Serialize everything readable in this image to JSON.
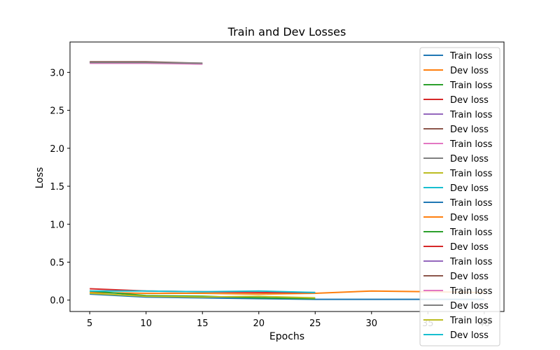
{
  "chart_data": {
    "type": "line",
    "title": "Train and Dev Losses",
    "xlabel": "Epochs",
    "ylabel": "Loss",
    "xlim": [
      3.25,
      41.75
    ],
    "ylim": [
      -0.15,
      3.4
    ],
    "xticks": [
      5,
      10,
      15,
      20,
      25,
      30,
      35,
      40
    ],
    "yticks": [
      0.0,
      0.5,
      1.0,
      1.5,
      2.0,
      2.5,
      3.0
    ],
    "ytick_labels": [
      "0.0",
      "0.5",
      "1.0",
      "1.5",
      "2.0",
      "2.5",
      "3.0"
    ],
    "grid": false,
    "legend_placement": "right",
    "series": [
      {
        "name": "Train loss",
        "color": "#1f77b4",
        "x": [
          5,
          10,
          15,
          20,
          25,
          30,
          35,
          40
        ],
        "values": [
          0.08,
          0.04,
          0.03,
          0.02,
          0.01,
          0.01,
          0.01,
          0.01
        ]
      },
      {
        "name": "Dev loss",
        "color": "#ff7f0e",
        "x": [
          5,
          10,
          15,
          20,
          25,
          30,
          35,
          40
        ],
        "values": [
          0.1,
          0.09,
          0.09,
          0.08,
          0.09,
          0.12,
          0.11,
          0.1
        ]
      },
      {
        "name": "Train loss",
        "color": "#2ca02c",
        "x": [
          5,
          10,
          15,
          20,
          25
        ],
        "values": [
          0.12,
          0.06,
          0.05,
          0.03,
          0.02
        ]
      },
      {
        "name": "Dev loss",
        "color": "#d62728",
        "x": [
          5,
          10,
          15,
          20,
          25
        ],
        "values": [
          0.15,
          0.12,
          0.11,
          0.1,
          0.1
        ]
      },
      {
        "name": "Train loss",
        "color": "#9467bd",
        "x": [
          5,
          10,
          15
        ],
        "values": [
          3.13,
          3.13,
          3.11
        ]
      },
      {
        "name": "Dev loss",
        "color": "#8c564b",
        "x": [
          5,
          10,
          15
        ],
        "values": [
          3.14,
          3.14,
          3.12
        ]
      },
      {
        "name": "Train loss",
        "color": "#e377c2",
        "x": [
          5,
          10,
          15
        ],
        "values": [
          3.12,
          3.12,
          3.11
        ]
      },
      {
        "name": "Dev loss",
        "color": "#7f7f7f",
        "x": [
          5,
          10,
          15
        ],
        "values": [
          3.13,
          3.13,
          3.12
        ]
      },
      {
        "name": "Train loss",
        "color": "#bcbd22",
        "x": [
          5,
          10,
          15,
          20,
          25
        ],
        "values": [
          0.09,
          0.05,
          0.04,
          0.05,
          0.03
        ]
      },
      {
        "name": "Dev loss",
        "color": "#17becf",
        "x": [
          5,
          10,
          15,
          20,
          25
        ],
        "values": [
          0.12,
          0.12,
          0.11,
          0.12,
          0.1
        ]
      },
      {
        "name": "Train loss",
        "color": "#1f77b4",
        "x": [],
        "values": []
      },
      {
        "name": "Dev loss",
        "color": "#ff7f0e",
        "x": [],
        "values": []
      },
      {
        "name": "Train loss",
        "color": "#2ca02c",
        "x": [],
        "values": []
      },
      {
        "name": "Dev loss",
        "color": "#d62728",
        "x": [],
        "values": []
      },
      {
        "name": "Train loss",
        "color": "#9467bd",
        "x": [],
        "values": []
      },
      {
        "name": "Dev loss",
        "color": "#8c564b",
        "x": [],
        "values": []
      },
      {
        "name": "Train loss",
        "color": "#e377c2",
        "x": [],
        "values": []
      },
      {
        "name": "Dev loss",
        "color": "#7f7f7f",
        "x": [],
        "values": []
      },
      {
        "name": "Train loss",
        "color": "#bcbd22",
        "x": [],
        "values": []
      },
      {
        "name": "Dev loss",
        "color": "#17becf",
        "x": [],
        "values": []
      }
    ]
  }
}
